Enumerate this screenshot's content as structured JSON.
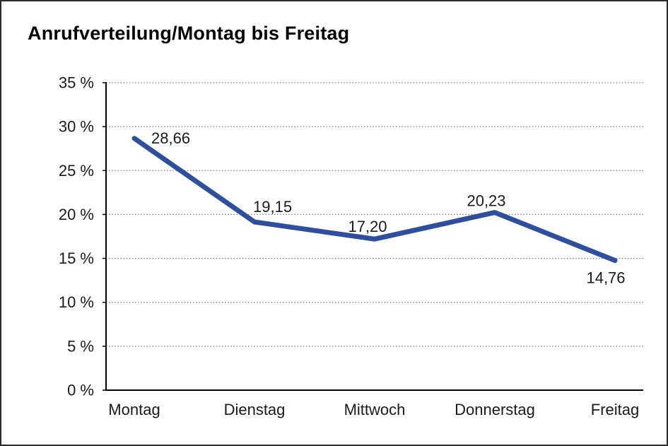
{
  "window": {
    "background_color": "#ffffff",
    "border_color": "#2b2b2b"
  },
  "chart_data": {
    "type": "line",
    "title": "Anrufverteilung/Montag bis Freitag",
    "categories": [
      "Montag",
      "Dienstag",
      "Mittwoch",
      "Donnerstag",
      "Freitag"
    ],
    "series": [
      {
        "name": "Anrufverteilung",
        "values": [
          28.66,
          19.15,
          17.2,
          20.23,
          14.76
        ],
        "point_labels": [
          "28,66",
          "19,15",
          "17,20",
          "20,23",
          "14,76"
        ]
      }
    ],
    "xlabel": "",
    "ylabel": "",
    "ylim": [
      0,
      35
    ],
    "y_tick_step": 5,
    "y_tick_labels": [
      "0 %",
      "5 %",
      "10 %",
      "15 %",
      "20 %",
      "25 %",
      "30 %",
      "35 %"
    ],
    "grid": "horizontal-dotted",
    "legend": "none",
    "colors": {
      "line": "#2e4f9d",
      "axis": "#000000",
      "gridline": "#7d7d7d",
      "text": "#1a1a1a"
    }
  }
}
